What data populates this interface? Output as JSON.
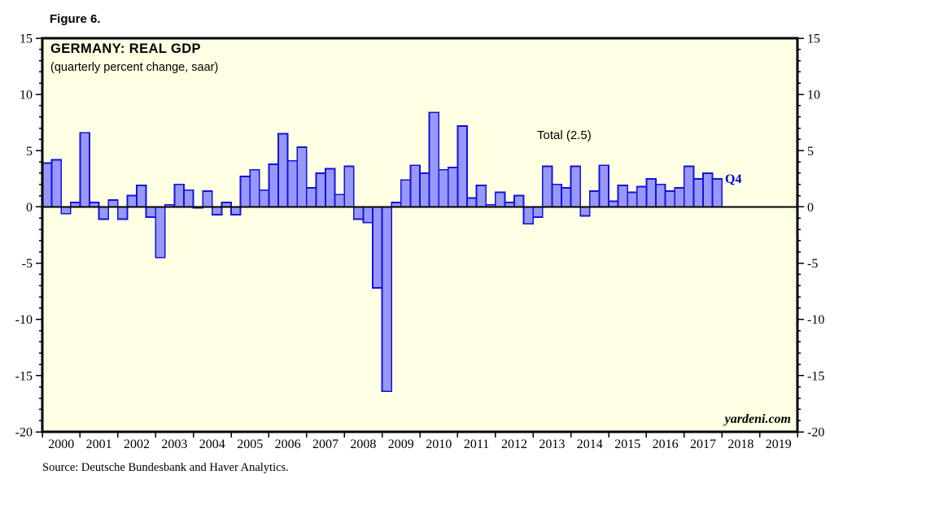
{
  "figure_label": "Figure 6.",
  "source_line": "Source: Deutsche Bundesbank and Haver Analytics.",
  "branding": "yardeni.com",
  "annotations": {
    "total": "Total (2.5)",
    "latest_quarter": "Q4"
  },
  "colors": {
    "bar_fill": "#9898fa",
    "bar_border": "#1212dd",
    "plot_background": "#ffffe3",
    "page_background": "#ffffff",
    "axis": "#000000",
    "annotation_blue": "#0000cc"
  },
  "chart_data": {
    "type": "bar",
    "title": "GERMANY: REAL GDP",
    "subtitle": "(quarterly percent change, saar)",
    "xlabel": "",
    "ylabel": "",
    "ylim": [
      -20,
      15
    ],
    "y_major_tick_step": 5,
    "y_minor_tick_step": 1,
    "y_tick_labels": [
      "15",
      "10",
      "5",
      "0",
      "-5",
      "-10",
      "-15",
      "-20"
    ],
    "x_years": [
      "2000",
      "2001",
      "2002",
      "2003",
      "2004",
      "2005",
      "2006",
      "2007",
      "2008",
      "2009",
      "2010",
      "2011",
      "2012",
      "2013",
      "2014",
      "2015",
      "2016",
      "2017",
      "2018",
      "2019"
    ],
    "quarters_per_year": 4,
    "grid": "off",
    "legend": "none",
    "series": [
      {
        "name": "Germany real GDP, quarterly percent change (saar)",
        "start_quarter": "2000-Q1",
        "end_quarter": "2017-Q4",
        "values": [
          3.9,
          4.2,
          -0.6,
          0.4,
          6.6,
          0.4,
          -1.1,
          0.6,
          -1.1,
          1.0,
          1.9,
          -0.9,
          -4.5,
          0.2,
          2.0,
          1.5,
          -0.1,
          1.4,
          -0.7,
          0.4,
          -0.7,
          2.7,
          3.3,
          1.5,
          3.8,
          6.5,
          4.1,
          5.3,
          1.7,
          3.0,
          3.4,
          1.1,
          3.6,
          -1.1,
          -1.4,
          -7.2,
          -16.4,
          0.4,
          2.4,
          3.7,
          3.0,
          8.4,
          3.3,
          3.5,
          7.2,
          0.8,
          1.9,
          0.2,
          1.3,
          0.4,
          1.0,
          -1.5,
          -0.9,
          3.6,
          2.0,
          1.7,
          3.6,
          -0.8,
          1.4,
          3.7,
          0.5,
          1.9,
          1.3,
          1.8,
          2.5,
          2.0,
          1.4,
          1.7,
          3.6,
          2.5,
          3.0,
          2.5
        ]
      }
    ]
  }
}
